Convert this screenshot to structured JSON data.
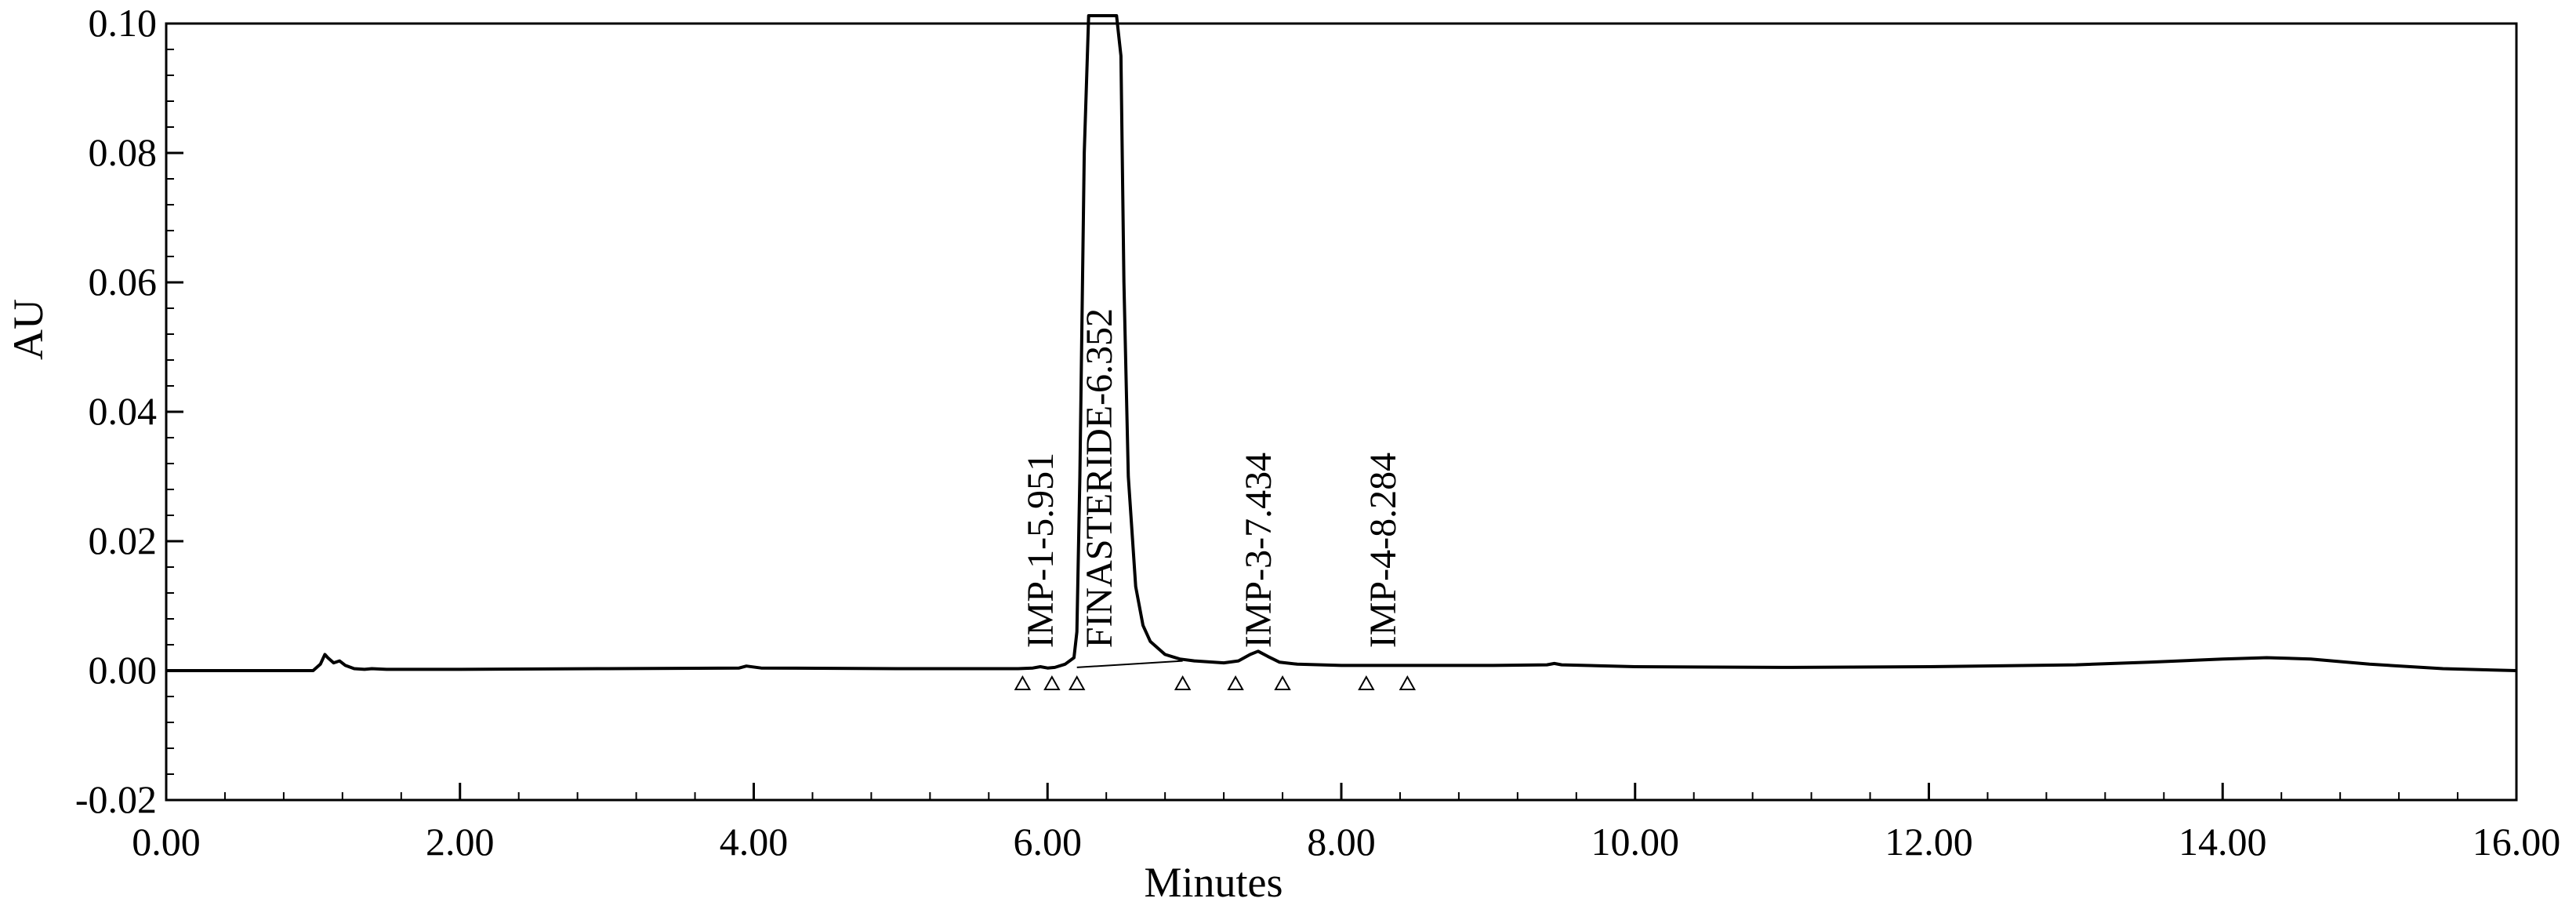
{
  "chart_data": {
    "type": "line",
    "title": "",
    "xlabel": "Minutes",
    "ylabel": "AU",
    "xlim": [
      0,
      16
    ],
    "ylim": [
      -0.02,
      0.1
    ],
    "x_ticks": [
      "0.00",
      "2.00",
      "4.00",
      "6.00",
      "8.00",
      "10.00",
      "12.00",
      "14.00",
      "16.00"
    ],
    "y_ticks": [
      "-0.02",
      "0.00",
      "0.02",
      "0.04",
      "0.06",
      "0.08",
      "0.10"
    ],
    "y_tick_values": [
      -0.02,
      0.0,
      0.02,
      0.04,
      0.06,
      0.08,
      0.1
    ],
    "grid": false,
    "series": [
      {
        "x": [
          0.0,
          1.0,
          1.05,
          1.08,
          1.1,
          1.14,
          1.18,
          1.22,
          1.28,
          1.35,
          1.4,
          1.5,
          2.0,
          3.0,
          3.9,
          3.95,
          4.05,
          5.0,
          5.8,
          5.9,
          5.951,
          6.0,
          6.05,
          6.12,
          6.18,
          6.2,
          6.22,
          6.25,
          6.28,
          6.3,
          6.352,
          6.4,
          6.44,
          6.47,
          6.5,
          6.52,
          6.55,
          6.6,
          6.65,
          6.7,
          6.8,
          6.9,
          7.0,
          7.2,
          7.3,
          7.38,
          7.434,
          7.5,
          7.58,
          7.7,
          8.0,
          8.284,
          8.5,
          9.0,
          9.4,
          9.45,
          9.5,
          10.0,
          11.0,
          12.0,
          13.0,
          13.5,
          14.0,
          14.3,
          14.6,
          15.0,
          15.5,
          16.0
        ],
        "y": [
          0.0,
          0.0,
          0.001,
          0.0025,
          0.002,
          0.0012,
          0.0015,
          0.0008,
          0.0003,
          0.0002,
          0.0003,
          0.0002,
          0.0002,
          0.0003,
          0.0004,
          0.0007,
          0.0004,
          0.0003,
          0.0003,
          0.0004,
          0.0006,
          0.0004,
          0.0005,
          0.001,
          0.002,
          0.006,
          0.03,
          0.08,
          0.11,
          0.11,
          0.11,
          0.11,
          0.11,
          0.11,
          0.095,
          0.06,
          0.03,
          0.013,
          0.007,
          0.0045,
          0.0025,
          0.0018,
          0.0015,
          0.0012,
          0.0015,
          0.0025,
          0.003,
          0.0022,
          0.0013,
          0.001,
          0.0008,
          0.0008,
          0.0008,
          0.0008,
          0.0009,
          0.0011,
          0.0009,
          0.0006,
          0.0005,
          0.0006,
          0.0009,
          0.0013,
          0.0018,
          0.002,
          0.0018,
          0.001,
          0.0003,
          0.0
        ]
      }
    ],
    "peak_labels": [
      {
        "text": "IMP-1-5.951",
        "x": 5.951
      },
      {
        "text": "FINASTERIDE-6.352",
        "x": 6.352
      },
      {
        "text": "IMP-3-7.434",
        "x": 7.434
      },
      {
        "text": "IMP-4-8.284",
        "x": 8.284
      }
    ],
    "integration_markers_x": [
      5.83,
      6.03,
      6.2,
      6.92,
      7.28,
      7.6,
      8.17,
      8.45
    ],
    "baseline_segment": {
      "x": [
        6.2,
        6.92
      ],
      "y": [
        0.0005,
        0.0015
      ]
    }
  }
}
